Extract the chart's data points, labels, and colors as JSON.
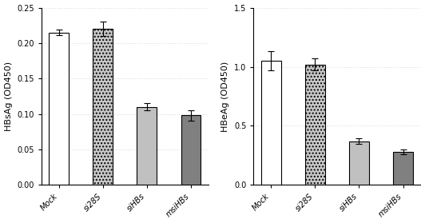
{
  "left": {
    "ylabel": "HBsAg (OD450)",
    "categories": [
      "Mock",
      "si28S",
      "siHBs",
      "msiHBs"
    ],
    "values": [
      0.215,
      0.22,
      0.11,
      0.098
    ],
    "errors": [
      0.004,
      0.01,
      0.005,
      0.007
    ],
    "ylim": [
      0,
      0.25
    ],
    "yticks": [
      0.0,
      0.05,
      0.1,
      0.15,
      0.2,
      0.25
    ]
  },
  "right": {
    "ylabel": "HBeAg (OD450)",
    "categories": [
      "Mock",
      "si28S",
      "siHBs",
      "msiHBs"
    ],
    "values": [
      1.05,
      1.02,
      0.37,
      0.28
    ],
    "errors": [
      0.08,
      0.05,
      0.025,
      0.02
    ],
    "ylim": [
      0,
      1.5
    ],
    "yticks": [
      0.0,
      0.5,
      1.0,
      1.5
    ]
  },
  "bar_colors": [
    "white",
    "#c8c8c8",
    "#c0c0c0",
    "#808080"
  ],
  "bar_hatches": [
    "",
    "....",
    "",
    ""
  ],
  "bar_width": 0.45,
  "capsize": 3,
  "fontsize_label": 8,
  "fontsize_tick": 7,
  "figure_bg": "white"
}
